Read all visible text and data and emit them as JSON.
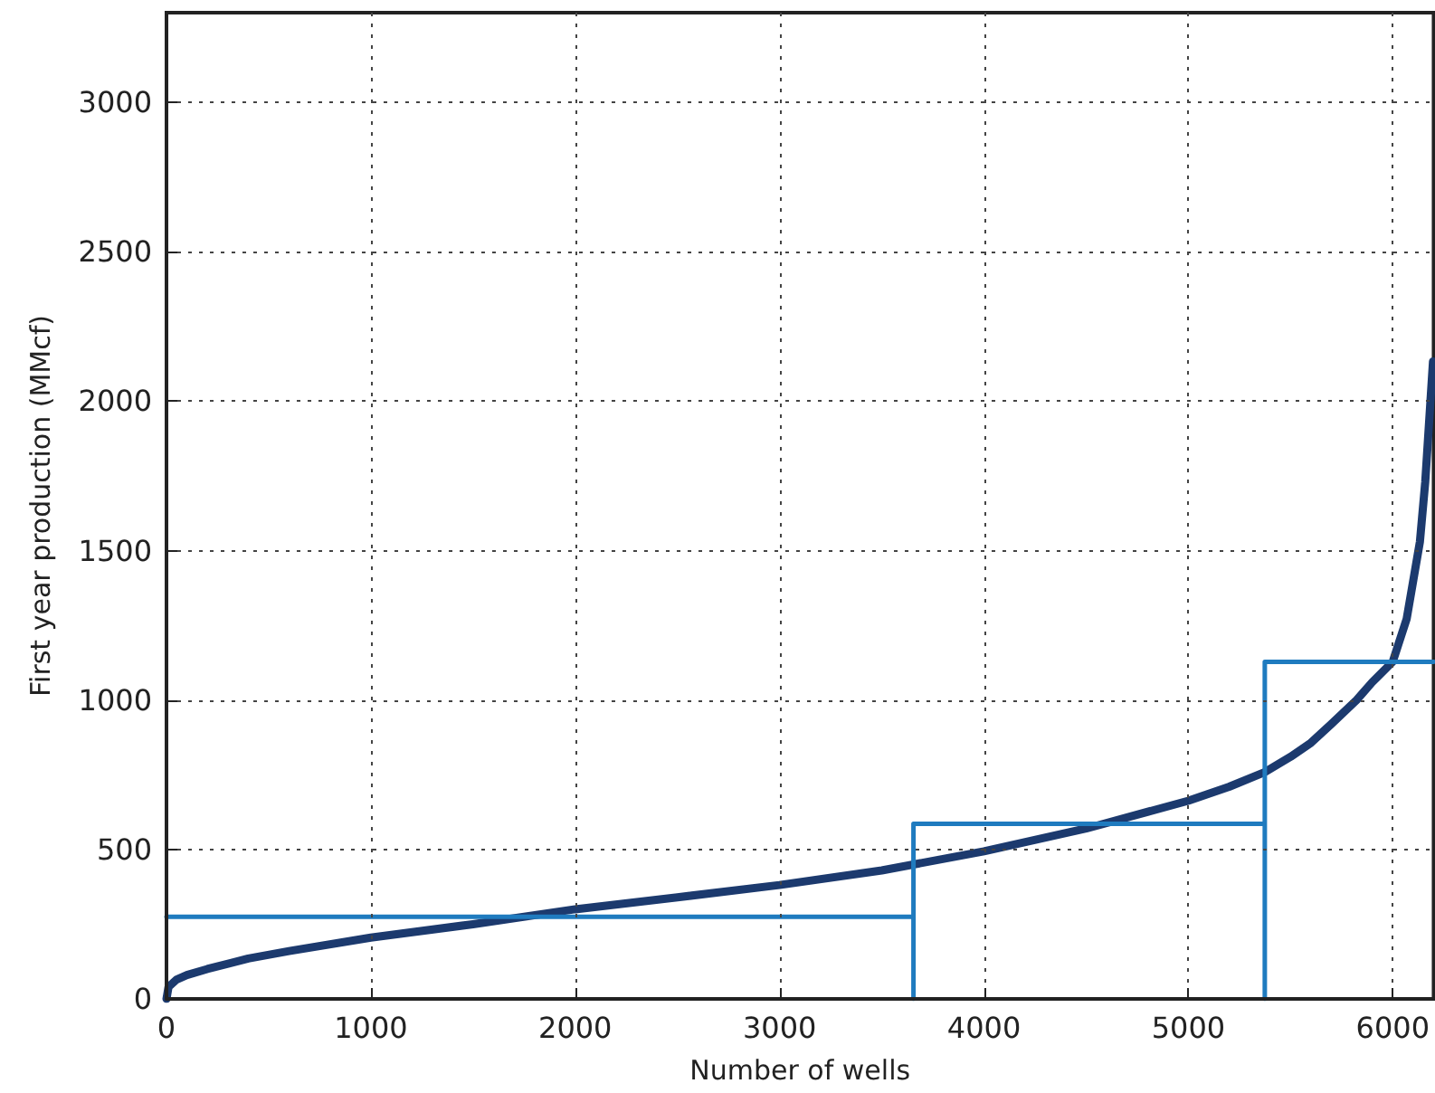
{
  "chart_data": {
    "type": "line",
    "xlabel": "Number of wells",
    "ylabel": "First year production (MMcf)",
    "xlim": [
      0,
      6200
    ],
    "xticks": [
      0,
      1000,
      2000,
      3000,
      4000,
      5000,
      6000
    ],
    "ylim": [
      0,
      3300
    ],
    "yticks": [
      0,
      500,
      1000,
      1500,
      2000,
      2500,
      3000
    ],
    "grid": true,
    "marker": "none",
    "line_style": "solid",
    "series": [
      {
        "color": "#1c3a6e",
        "x": [
          0,
          10,
          50,
          100,
          200,
          400,
          600,
          1000,
          1500,
          2000,
          2500,
          3000,
          3500,
          4000,
          4500,
          5000,
          5200,
          5374,
          5500,
          5600,
          5700,
          5823,
          5900,
          6000,
          6068,
          6133,
          6159,
          6197
        ],
        "values": [
          0,
          40,
          65,
          80,
          100,
          135,
          160,
          205,
          250,
          300,
          340,
          381,
          430,
          494,
          570,
          663,
          710,
          759,
          810,
          857,
          920,
          1000,
          1060,
          1128,
          1271,
          1530,
          1729,
          2133
        ]
      },
      {
        "color": "#1f7bbf",
        "x": [
          0,
          3655,
          3655,
          3655,
          5374,
          5374,
          5374,
          6200
        ],
        "values": [
          275,
          275,
          0,
          586,
          586,
          0,
          1128,
          1128
        ]
      }
    ]
  }
}
